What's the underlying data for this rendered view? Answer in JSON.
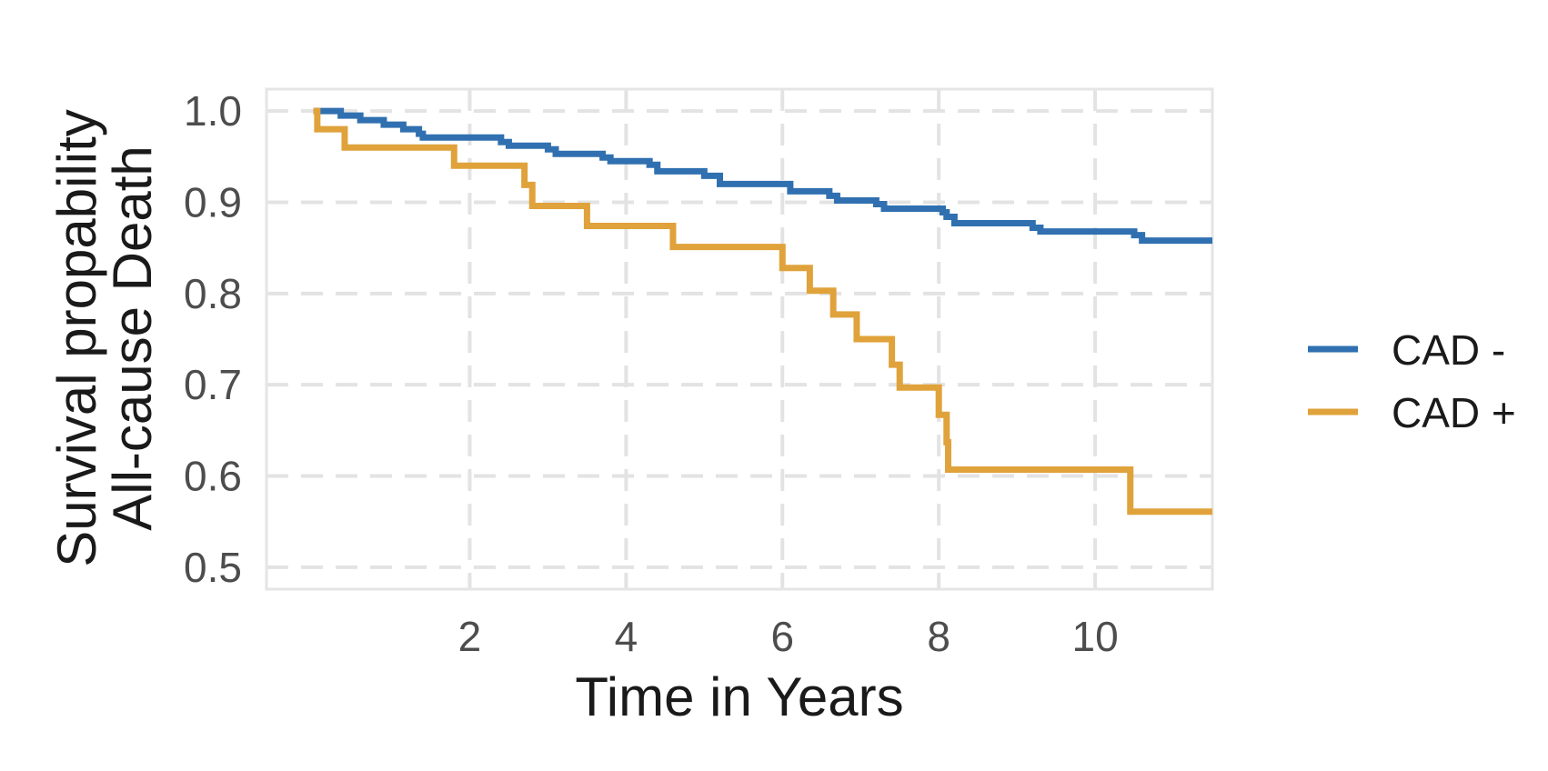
{
  "chart_data": {
    "type": "line",
    "step": "post",
    "xlabel": "Time in Years",
    "ylabel_lines": [
      "Survival propability",
      "All-cause Death"
    ],
    "xlim": [
      -0.6,
      11.5
    ],
    "ylim": [
      0.476,
      1.024
    ],
    "x_ticks": [
      2,
      4,
      6,
      8,
      10
    ],
    "x_tick_labels": [
      "2",
      "4",
      "6",
      "8",
      "10"
    ],
    "y_ticks": [
      0.5,
      0.6,
      0.7,
      0.8,
      0.9,
      1.0
    ],
    "y_tick_labels": [
      "0.5",
      "0.6",
      "0.7",
      "0.8",
      "0.9",
      "1.0"
    ],
    "grid": true,
    "grid_style": "dashed",
    "legend_position": "right",
    "series": [
      {
        "name": "CAD -",
        "color": "#3070b0",
        "x": [
          0.0,
          0.35,
          0.6,
          0.9,
          1.15,
          1.35,
          1.4,
          2.4,
          2.5,
          3.0,
          3.1,
          3.7,
          3.8,
          4.3,
          4.4,
          5.0,
          5.2,
          6.0,
          6.1,
          6.6,
          6.7,
          7.2,
          7.3,
          8.05,
          8.1,
          8.2,
          8.7,
          9.2,
          9.3,
          10.5,
          10.6,
          11.5
        ],
        "y": [
          1.0,
          0.995,
          0.99,
          0.985,
          0.98,
          0.975,
          0.971,
          0.966,
          0.962,
          0.958,
          0.953,
          0.949,
          0.945,
          0.941,
          0.934,
          0.929,
          0.92,
          0.92,
          0.912,
          0.907,
          0.902,
          0.898,
          0.893,
          0.889,
          0.884,
          0.877,
          0.877,
          0.872,
          0.868,
          0.864,
          0.858,
          0.858
        ]
      },
      {
        "name": "CAD +",
        "color": "#e0a23a",
        "x": [
          0.0,
          0.05,
          0.4,
          1.8,
          2.7,
          2.8,
          3.5,
          4.6,
          6.0,
          6.35,
          6.65,
          6.95,
          7.4,
          7.5,
          8.0,
          8.1,
          8.12,
          10.45,
          11.5
        ],
        "y": [
          1.0,
          0.98,
          0.96,
          0.94,
          0.919,
          0.896,
          0.874,
          0.851,
          0.828,
          0.803,
          0.777,
          0.75,
          0.722,
          0.697,
          0.667,
          0.637,
          0.607,
          0.561,
          0.561
        ]
      }
    ]
  }
}
